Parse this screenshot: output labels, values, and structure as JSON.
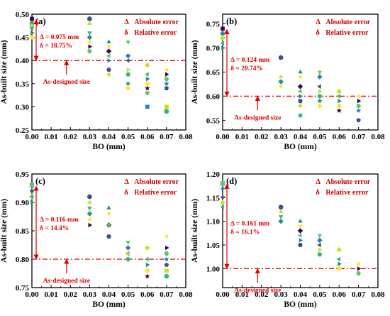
{
  "colors": {
    "accent_red": "#e00000",
    "palette": [
      "#440154",
      "#3b528b",
      "#21918c",
      "#5ec962",
      "#c8e020",
      "#fde725",
      "#2c7fb8",
      "#35b779"
    ],
    "marker_order": [
      "square",
      "circle",
      "triangle-up",
      "triangle-down",
      "diamond",
      "triangle-left",
      "triangle-right",
      "hexagon",
      "star",
      "pentagon"
    ]
  },
  "chart_data": [
    {
      "type": "scatter",
      "panel": "(a)",
      "xlabel": "BO (mm)",
      "ylabel": "As-built size (mm)",
      "xlim": [
        0.0,
        0.08
      ],
      "ylim": [
        0.25,
        0.5
      ],
      "xticks": [
        "0.00",
        "0.01",
        "0.02",
        "0.03",
        "0.04",
        "0.05",
        "0.06",
        "0.07",
        "0.08"
      ],
      "yticks": [
        "0.25",
        "0.30",
        "0.35",
        "0.40",
        "0.45",
        "0.50"
      ],
      "designed_size": 0.4,
      "legend": {
        "abs_symbol": "Δ",
        "abs_label": "Absolute error",
        "rel_symbol": "δ",
        "rel_label": "Relative error",
        "position": "top-right"
      },
      "annotation": {
        "abs": "Δ = 0.075 mm",
        "rel": "δ = 18.75%",
        "designed_label": "As-designed size"
      },
      "points": {
        "0.00": [
          0.49,
          0.48,
          0.48,
          0.47,
          0.475,
          0.47,
          0.46,
          0.45
        ],
        "0.03": [
          0.49,
          0.48,
          0.46,
          0.45,
          0.44,
          0.43,
          0.42
        ],
        "0.04": [
          0.44,
          0.43,
          0.42,
          0.41,
          0.4,
          0.38,
          0.37
        ],
        "0.05": [
          0.44,
          0.41,
          0.4,
          0.38,
          0.37,
          0.35,
          0.34
        ],
        "0.06": [
          0.39,
          0.37,
          0.36,
          0.35,
          0.34,
          0.33,
          0.3
        ],
        "0.07": [
          0.38,
          0.37,
          0.36,
          0.35,
          0.34,
          0.3,
          0.29
        ]
      }
    },
    {
      "type": "scatter",
      "panel": "(b)",
      "xlabel": "BO (mm)",
      "ylabel": "As-built size (mm)",
      "xlim": [
        0.0,
        0.08
      ],
      "ylim": [
        0.53,
        0.77
      ],
      "xticks": [
        "0.00",
        "0.01",
        "0.02",
        "0.03",
        "0.04",
        "0.05",
        "0.06",
        "0.07",
        "0.08"
      ],
      "yticks": [
        "0.55",
        "0.60",
        "0.65",
        "0.70",
        "0.75"
      ],
      "designed_size": 0.6,
      "legend": {
        "abs_symbol": "Δ",
        "abs_label": "Absolute error",
        "rel_symbol": "δ",
        "rel_label": "Relative error",
        "position": "top-right"
      },
      "annotation": {
        "abs": "Δ = 0.124 mm",
        "rel": "δ = 20.74%",
        "designed_label": "As-designed size"
      },
      "points": {
        "0.00": [
          0.74,
          0.73,
          0.73,
          0.72,
          0.72,
          0.71,
          0.7
        ],
        "0.03": [
          0.68,
          0.64,
          0.63,
          0.63,
          0.62
        ],
        "0.04": [
          0.65,
          0.64,
          0.62,
          0.61,
          0.6,
          0.59,
          0.58,
          0.56
        ],
        "0.05": [
          0.65,
          0.64,
          0.62,
          0.61,
          0.6,
          0.59,
          0.58
        ],
        "0.06": [
          0.61,
          0.6,
          0.59,
          0.58,
          0.57
        ],
        "0.07": [
          0.6,
          0.59,
          0.58,
          0.57,
          0.55
        ]
      }
    },
    {
      "type": "scatter",
      "panel": "(c)",
      "xlabel": "BO (mm)",
      "ylabel": "As-built size (mm)",
      "xlim": [
        0.0,
        0.08
      ],
      "ylim": [
        0.75,
        0.95
      ],
      "xticks": [
        "0.00",
        "0.01",
        "0.02",
        "0.03",
        "0.04",
        "0.05",
        "0.06",
        "0.07",
        "0.08"
      ],
      "yticks": [
        "0.75",
        "0.80",
        "0.85",
        "0.90",
        "0.95"
      ],
      "designed_size": 0.8,
      "legend": {
        "abs_symbol": "Δ",
        "abs_label": "Absolute error",
        "rel_symbol": "δ",
        "rel_label": "Relative error",
        "position": "top-right"
      },
      "annotation": {
        "abs": "Δ = 0.116 mm",
        "rel": "δ = 14.4%",
        "designed_label": "As-designed size"
      },
      "points": {
        "0.00": [
          0.93,
          0.93,
          0.92,
          0.92,
          0.91,
          0.91,
          0.9
        ],
        "0.03": [
          0.91,
          0.9,
          0.89,
          0.88,
          0.87,
          0.86
        ],
        "0.04": [
          0.89,
          0.88,
          0.86,
          0.86,
          0.84,
          0.84
        ],
        "0.05": [
          0.83,
          0.82,
          0.81,
          0.81,
          0.8
        ],
        "0.06": [
          0.82,
          0.8,
          0.79,
          0.78,
          0.77
        ],
        "0.07": [
          0.84,
          0.82,
          0.81,
          0.8,
          0.79,
          0.78,
          0.77
        ]
      }
    },
    {
      "type": "scatter",
      "panel": "(d)",
      "xlabel": "BO (mm)",
      "ylabel": "As-built size (mm)",
      "xlim": [
        0.0,
        0.08
      ],
      "ylim": [
        0.96,
        1.2
      ],
      "xticks": [
        "0.00",
        "0.01",
        "0.02",
        "0.03",
        "0.04",
        "0.05",
        "0.06",
        "0.07",
        "0.08"
      ],
      "yticks": [
        "1.00",
        "1.05",
        "1.10",
        "1.15",
        "1.20"
      ],
      "designed_size": 1.0,
      "legend": {
        "abs_symbol": "Δ",
        "abs_label": "Absolute error",
        "rel_symbol": "δ",
        "rel_label": "Relative error",
        "position": "top-right"
      },
      "annotation": {
        "abs": "Δ = 0.161 mm",
        "rel": "δ = 16.1%",
        "designed_label": "As-designed size"
      },
      "points": {
        "0.00": [
          1.18,
          1.18,
          1.17,
          1.15,
          1.14,
          1.13
        ],
        "0.03": [
          1.13,
          1.12,
          1.11,
          1.1
        ],
        "0.04": [
          1.1,
          1.09,
          1.08,
          1.07,
          1.06,
          1.05
        ],
        "0.05": [
          1.07,
          1.06,
          1.05,
          1.04,
          1.03
        ],
        "0.06": [
          1.04,
          1.02,
          1.01,
          1.0
        ],
        "0.07": [
          1.01,
          1.0,
          0.99
        ]
      }
    }
  ]
}
